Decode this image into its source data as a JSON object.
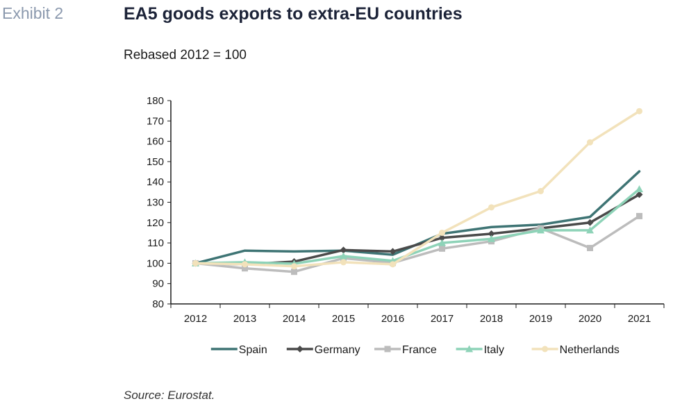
{
  "header": {
    "exhibit": "Exhibit 2",
    "title": "EA5 goods exports to extra-EU countries",
    "subtitle": "Rebased 2012 = 100"
  },
  "footer": {
    "source": "Source: Eurostat."
  },
  "chart_data": {
    "type": "line",
    "title": "EA5 goods exports to extra-EU countries",
    "subtitle": "Rebased 2012 = 100",
    "x": [
      "2012",
      "2013",
      "2014",
      "2015",
      "2016",
      "2017",
      "2018",
      "2019",
      "2020",
      "2021"
    ],
    "ylim": [
      80,
      180
    ],
    "yticks": [
      80,
      90,
      100,
      110,
      120,
      130,
      140,
      150,
      160,
      170,
      180
    ],
    "grid": false,
    "legend_position": "bottom",
    "series": [
      {
        "name": "Spain",
        "color": "#3e7474",
        "marker": "none",
        "values": [
          100,
          106.2,
          105.8,
          106.2,
          104.2,
          114.5,
          117.8,
          119,
          122.8,
          145.2
        ]
      },
      {
        "name": "Germany",
        "color": "#4a4a4a",
        "marker": "diamond",
        "values": [
          100,
          99.5,
          100.8,
          106.5,
          105.8,
          112.5,
          114.5,
          117.2,
          120,
          133.8
        ]
      },
      {
        "name": "France",
        "color": "#bcbcbc",
        "marker": "square",
        "values": [
          100,
          97.5,
          95.8,
          102.5,
          100.2,
          107.2,
          110.8,
          117.2,
          107.5,
          123.2
        ]
      },
      {
        "name": "Italy",
        "color": "#8ed3b8",
        "marker": "triangle",
        "values": [
          100,
          100.5,
          99.8,
          103.5,
          101.2,
          110,
          112,
          116.2,
          116.2,
          136.5
        ]
      },
      {
        "name": "Netherlands",
        "color": "#f2e2bb",
        "marker": "circle",
        "values": [
          100,
          99.5,
          98.5,
          100.5,
          99.5,
          115,
          127.5,
          135.5,
          159.5,
          174.8
        ]
      }
    ]
  }
}
